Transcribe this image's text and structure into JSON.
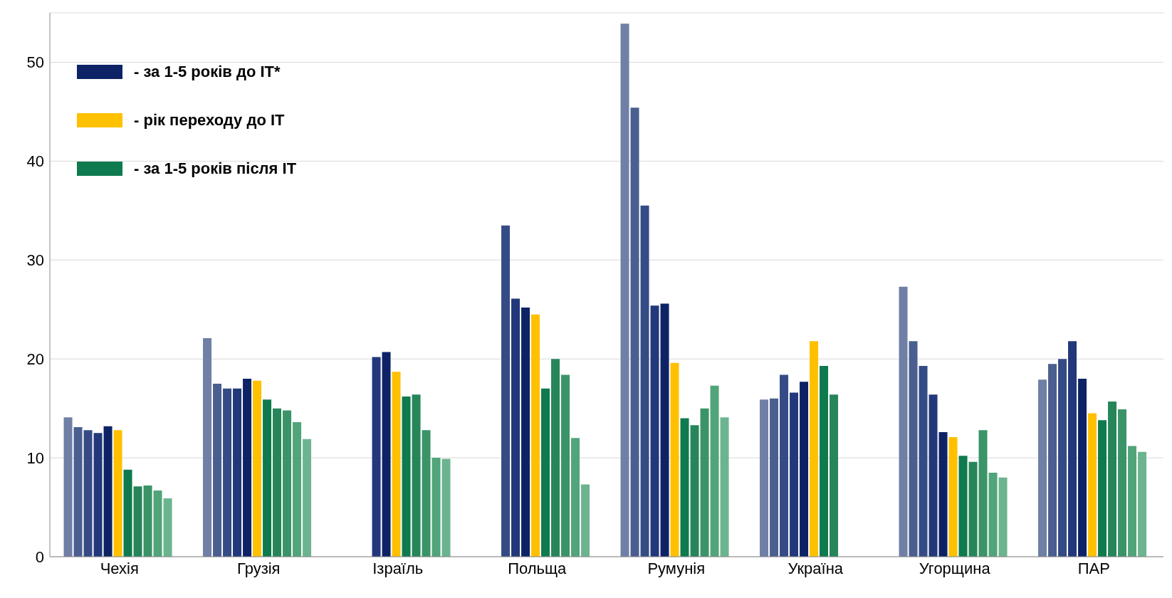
{
  "chart_data": {
    "type": "bar",
    "categories": [
      "Чехія",
      "Грузія",
      "Ізраїль",
      "Польща",
      "Румунія",
      "Україна",
      "Угорщина",
      "ПАР"
    ],
    "series": [
      {
        "color": "#6f7fa5",
        "values": [
          14.1,
          22.1,
          null,
          null,
          53.9,
          15.9,
          27.3,
          17.9
        ]
      },
      {
        "color": "#4a5e8f",
        "values": [
          13.1,
          17.5,
          null,
          null,
          45.4,
          16.0,
          21.8,
          19.5
        ]
      },
      {
        "color": "#354b85",
        "values": [
          12.8,
          17.0,
          null,
          33.5,
          35.5,
          18.4,
          19.3,
          20.0
        ]
      },
      {
        "color": "#22387a",
        "values": [
          12.5,
          17.0,
          20.2,
          26.1,
          25.4,
          16.6,
          16.4,
          21.8
        ]
      },
      {
        "name": "- за 1-5 років до IT*",
        "color": "#0d2366",
        "values": [
          13.2,
          18.0,
          20.7,
          25.2,
          25.6,
          17.7,
          12.6,
          18.0
        ]
      },
      {
        "name": "- рік переходу до IT",
        "color": "#ffc000",
        "values": [
          12.8,
          17.8,
          18.7,
          24.5,
          19.6,
          21.8,
          12.1,
          14.5
        ]
      },
      {
        "name": "- за 1-5 років після IT",
        "color": "#0e7a4e",
        "values": [
          8.8,
          15.9,
          16.2,
          17.0,
          14.0,
          19.3,
          10.2,
          13.8
        ]
      },
      {
        "color": "#268659",
        "values": [
          7.1,
          15.0,
          16.4,
          20.0,
          13.3,
          16.4,
          9.6,
          15.7
        ]
      },
      {
        "color": "#3a9468",
        "values": [
          7.2,
          14.8,
          12.8,
          18.4,
          15.0,
          null,
          12.8,
          14.9
        ]
      },
      {
        "color": "#52a47b",
        "values": [
          6.7,
          13.6,
          10.0,
          12.0,
          17.3,
          null,
          8.5,
          11.2
        ]
      },
      {
        "color": "#6cb48f",
        "values": [
          5.9,
          11.9,
          9.9,
          7.3,
          14.1,
          null,
          8.0,
          10.6
        ]
      }
    ],
    "ylim": [
      0,
      55
    ],
    "yticks": [
      0,
      10,
      20,
      30,
      40,
      50
    ],
    "grid": "y",
    "legend": "top left"
  }
}
